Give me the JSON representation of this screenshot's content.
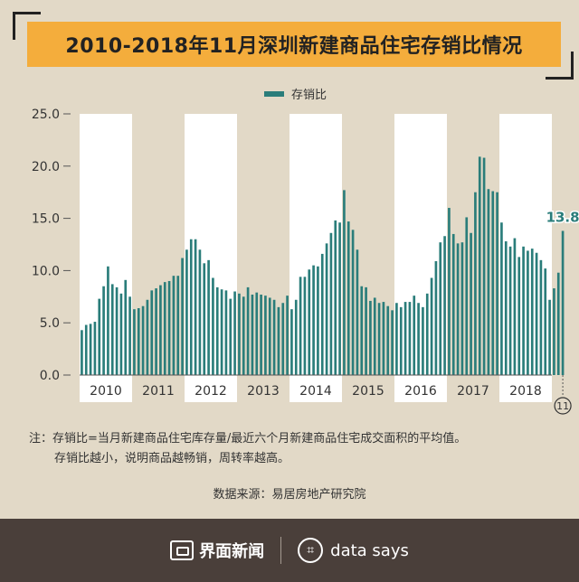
{
  "title": "2010-2018年11月深圳新建商品住宅存销比情况",
  "legend_label": "存销比",
  "note_line1": "注：存销比=当月新建商品住宅库存量/最近六个月新建商品住宅成交面积的平均值。",
  "note_line2": "存销比越小，说明商品越畅销，周转率越高。",
  "source": "数据来源：易居房地产研究院",
  "footer": {
    "brand": "界面新闻",
    "brand2": "data says"
  },
  "colors": {
    "bar": "#2a7d7a",
    "band": "#ffffff",
    "bg": "#e2d9c7"
  },
  "chart_data": {
    "type": "bar",
    "series": [
      {
        "name": "存销比"
      }
    ],
    "ylim": [
      0,
      25
    ],
    "yticks": [
      "0.0",
      "5.0",
      "10.0",
      "15.0",
      "20.0",
      "25.0"
    ],
    "year_labels": [
      "2010",
      "2011",
      "2012",
      "2013",
      "2014",
      "2015",
      "2016",
      "2017",
      "2018"
    ],
    "last_month_marker": "11",
    "last_value_label": "13.8",
    "values": [
      4.3,
      4.8,
      4.9,
      5.1,
      7.3,
      8.5,
      10.4,
      8.7,
      8.4,
      7.8,
      9.1,
      7.5,
      6.3,
      6.4,
      6.6,
      7.2,
      8.1,
      8.3,
      8.6,
      8.9,
      9.0,
      9.5,
      9.5,
      11.2,
      12.0,
      13.0,
      13.0,
      12.0,
      10.7,
      11.0,
      9.3,
      8.4,
      8.2,
      8.1,
      7.3,
      8.0,
      7.8,
      7.5,
      8.4,
      7.7,
      7.9,
      7.7,
      7.6,
      7.4,
      7.2,
      6.5,
      6.9,
      7.6,
      6.3,
      7.2,
      9.4,
      9.4,
      10.1,
      10.5,
      10.4,
      11.6,
      12.6,
      13.6,
      14.8,
      14.6,
      17.7,
      14.7,
      13.9,
      12.0,
      8.5,
      8.4,
      7.1,
      7.4,
      6.9,
      7.0,
      6.6,
      6.2,
      6.9,
      6.5,
      7.0,
      7.0,
      7.6,
      6.9,
      6.5,
      7.8,
      9.3,
      10.9,
      12.7,
      13.3,
      16.0,
      13.5,
      12.6,
      12.7,
      15.1,
      13.6,
      17.5,
      20.9,
      20.8,
      17.8,
      17.6,
      17.5,
      14.6,
      12.8,
      12.3,
      13.1,
      11.3,
      12.3,
      11.9,
      12.1,
      11.7,
      11.0,
      10.2,
      7.2,
      8.3,
      9.8,
      13.8
    ]
  }
}
